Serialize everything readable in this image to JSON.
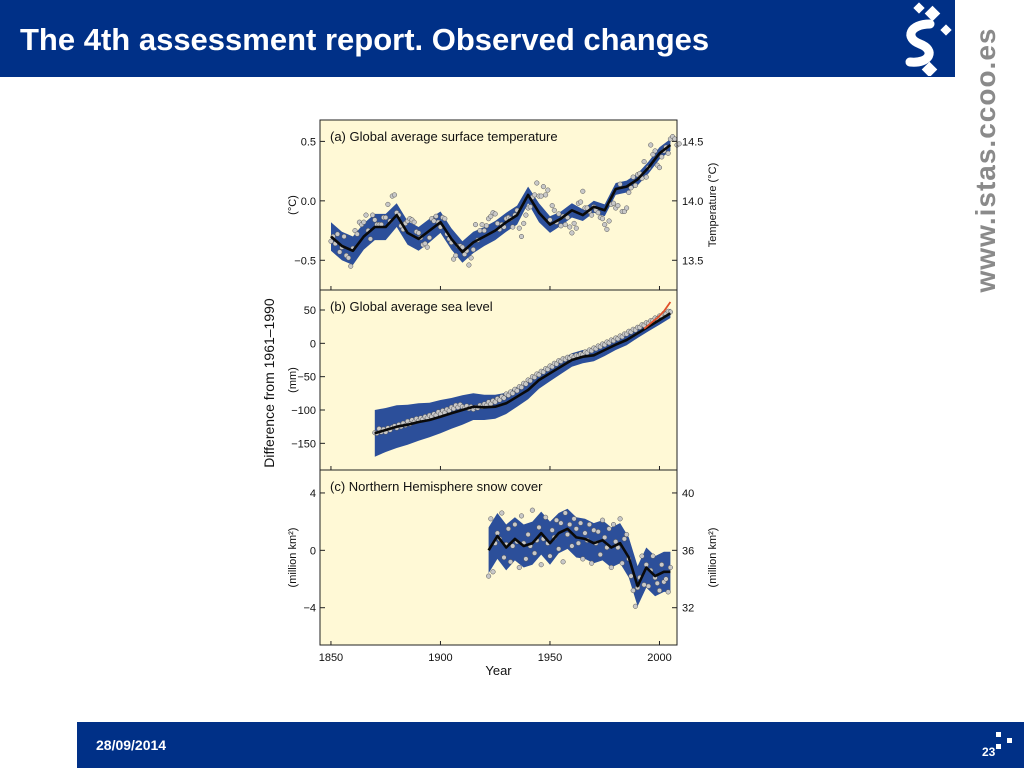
{
  "slide": {
    "title": "The 4th assessment report. Observed changes",
    "date": "28/09/2014",
    "page_number": "23",
    "website": "www.istas.ccoo.es"
  },
  "colors": {
    "header": "#003087",
    "plot_background": "#fff9d6",
    "uncertainty_band": "#2c4f9a",
    "smoothed_line": "#0a0a0a",
    "dot_fill": "#c8c8c8",
    "satellite_line": "#e0502a"
  },
  "chart_data": {
    "type": "line",
    "xlabel": "Year",
    "shared_ylabel": "Difference from 1961–1990",
    "xlim": [
      1845,
      2008
    ],
    "x_ticks": [
      1850,
      1900,
      1950,
      2000
    ],
    "panels": [
      {
        "id": "temperature",
        "title": "(a) Global average surface temperature",
        "ylabel": "(°C)",
        "y2label": "Temperature (°C)",
        "ylim": [
          -0.75,
          0.68
        ],
        "y_ticks": [
          0.5,
          0.0,
          -0.5
        ],
        "y_tick_labels": [
          "0.5",
          "0.0",
          "−0.5"
        ],
        "y2_ticks": [
          0.5,
          0.0,
          -0.5
        ],
        "y2_tick_labels": [
          "14.5",
          "14.0",
          "13.5"
        ],
        "smoothed": {
          "x": [
            1850,
            1855,
            1860,
            1865,
            1870,
            1875,
            1880,
            1885,
            1890,
            1895,
            1900,
            1905,
            1910,
            1915,
            1920,
            1925,
            1930,
            1935,
            1940,
            1945,
            1950,
            1955,
            1960,
            1965,
            1970,
            1975,
            1980,
            1985,
            1990,
            1995,
            2000,
            2005
          ],
          "y": [
            -0.3,
            -0.38,
            -0.42,
            -0.3,
            -0.22,
            -0.22,
            -0.12,
            -0.27,
            -0.32,
            -0.25,
            -0.18,
            -0.32,
            -0.43,
            -0.35,
            -0.3,
            -0.25,
            -0.18,
            -0.12,
            0.05,
            -0.1,
            -0.2,
            -0.15,
            -0.08,
            -0.12,
            -0.05,
            -0.08,
            0.1,
            0.12,
            0.18,
            0.28,
            0.4,
            0.47
          ]
        },
        "uncertainty": [
          0.12,
          0.12,
          0.12,
          0.11,
          0.11,
          0.11,
          0.1,
          0.1,
          0.1,
          0.1,
          0.09,
          0.09,
          0.09,
          0.09,
          0.08,
          0.08,
          0.08,
          0.08,
          0.07,
          0.08,
          0.07,
          0.06,
          0.06,
          0.05,
          0.05,
          0.05,
          0.05,
          0.05,
          0.05,
          0.05,
          0.05,
          0.05
        ],
        "annual_start": 1850,
        "annual": [
          -0.34,
          -0.3,
          -0.36,
          -0.28,
          -0.43,
          -0.39,
          -0.3,
          -0.46,
          -0.48,
          -0.55,
          -0.4,
          -0.25,
          -0.28,
          -0.18,
          -0.2,
          -0.18,
          -0.12,
          -0.25,
          -0.32,
          -0.12,
          -0.16,
          -0.2,
          -0.2,
          -0.2,
          -0.14,
          -0.14,
          -0.03,
          -0.17,
          0.04,
          0.05,
          -0.1,
          -0.12,
          -0.21,
          -0.24,
          -0.19,
          -0.17,
          -0.15,
          -0.16,
          -0.18,
          -0.26,
          -0.27,
          -0.31,
          -0.37,
          -0.36,
          -0.39,
          -0.31,
          -0.15,
          -0.17,
          -0.13,
          -0.18,
          -0.22,
          -0.14,
          -0.15,
          -0.28,
          -0.32,
          -0.35,
          -0.49,
          -0.46,
          -0.38,
          -0.38,
          -0.39,
          -0.45,
          -0.42,
          -0.54,
          -0.48,
          -0.41,
          -0.2,
          -0.33,
          -0.25,
          -0.2,
          -0.25,
          -0.21,
          -0.15,
          -0.13,
          -0.1,
          -0.11,
          -0.19,
          -0.24,
          -0.2,
          -0.22,
          -0.15,
          -0.14,
          -0.15,
          -0.22,
          -0.12,
          -0.08,
          -0.23,
          -0.3,
          -0.19,
          -0.12,
          -0.06,
          -0.05,
          0.03,
          0.05,
          0.15,
          0.04,
          0.04,
          0.12,
          0.05,
          0.09,
          -0.16,
          -0.04,
          -0.08,
          -0.18,
          -0.11,
          -0.21,
          -0.13,
          -0.2,
          -0.14,
          -0.22,
          -0.27,
          -0.19,
          -0.23,
          -0.02,
          -0.01,
          0.08,
          -0.06,
          -0.06,
          -0.09,
          -0.12,
          -0.05,
          -0.08,
          -0.1,
          -0.14,
          -0.15,
          -0.2,
          -0.24,
          -0.17,
          -0.03,
          -0.02,
          -0.06,
          -0.04,
          0.14,
          -0.09,
          -0.09,
          -0.06,
          0.07,
          0.11,
          0.2,
          0.13,
          0.22,
          0.23,
          0.19,
          0.33,
          0.2,
          0.28,
          0.47,
          0.39,
          0.42,
          0.3,
          0.28,
          0.37,
          0.42,
          0.45,
          0.4,
          0.52,
          0.54,
          0.52,
          0.47,
          0.48
        ]
      },
      {
        "id": "sea_level",
        "title": "(b) Global average sea level",
        "ylabel": "(mm)",
        "ylim": [
          -190,
          80
        ],
        "y_ticks": [
          50,
          0,
          -50,
          -100,
          -150
        ],
        "y_tick_labels": [
          "50",
          "0",
          "−50",
          "−100",
          "−150"
        ],
        "smoothed": {
          "x": [
            1870,
            1875,
            1880,
            1885,
            1890,
            1895,
            1900,
            1905,
            1910,
            1915,
            1920,
            1925,
            1930,
            1935,
            1940,
            1945,
            1950,
            1955,
            1960,
            1965,
            1970,
            1975,
            1980,
            1985,
            1990,
            1995,
            2000,
            2005
          ],
          "y": [
            -135,
            -130,
            -125,
            -122,
            -118,
            -115,
            -110,
            -105,
            -100,
            -95,
            -96,
            -95,
            -90,
            -80,
            -70,
            -55,
            -45,
            -35,
            -25,
            -20,
            -18,
            -10,
            -2,
            5,
            15,
            25,
            35,
            45
          ]
        },
        "uncertainty": [
          35,
          33,
          32,
          30,
          28,
          26,
          25,
          23,
          22,
          20,
          19,
          18,
          16,
          15,
          14,
          13,
          12,
          11,
          10,
          10,
          9,
          9,
          8,
          8,
          7,
          7,
          7,
          7
        ],
        "annual_start": 1870,
        "annual": [
          -134,
          -135,
          -128,
          -133,
          -129,
          -133,
          -127,
          -130,
          -126,
          -124,
          -127,
          -122,
          -125,
          -120,
          -123,
          -117,
          -121,
          -115,
          -118,
          -113,
          -116,
          -112,
          -114,
          -110,
          -112,
          -108,
          -110,
          -106,
          -108,
          -103,
          -106,
          -101,
          -104,
          -99,
          -101,
          -96,
          -98,
          -93,
          -96,
          -92,
          -95,
          -97,
          -94,
          -98,
          -95,
          -99,
          -96,
          -97,
          -93,
          -95,
          -91,
          -93,
          -88,
          -91,
          -86,
          -88,
          -83,
          -85,
          -80,
          -82,
          -76,
          -78,
          -73,
          -75,
          -69,
          -71,
          -65,
          -66,
          -60,
          -61,
          -55,
          -56,
          -50,
          -51,
          -46,
          -47,
          -42,
          -43,
          -38,
          -39,
          -34,
          -35,
          -30,
          -31,
          -26,
          -27,
          -23,
          -24,
          -21,
          -22,
          -19,
          -21,
          -18,
          -19,
          -16,
          -17,
          -13,
          -14,
          -10,
          -11,
          -7,
          -8,
          -4,
          -5,
          -1,
          -2,
          2,
          1,
          5,
          4,
          8,
          7,
          11,
          10,
          14,
          14,
          18,
          17,
          21,
          20,
          24,
          24,
          28,
          27,
          31,
          30,
          34,
          34,
          38,
          37,
          41,
          41,
          45,
          44,
          48,
          47
        ],
        "satellite": {
          "x": [
            1993,
            1996,
            1999,
            2002,
            2005
          ],
          "y": [
            22,
            30,
            38,
            48,
            62
          ]
        }
      },
      {
        "id": "snow_cover",
        "title": "(c) Northern Hemisphere snow cover",
        "ylabel": "(million km²)",
        "y2label": "(million km²)",
        "ylim": [
          -6.6,
          5.6
        ],
        "y_ticks": [
          4,
          0,
          -4
        ],
        "y_tick_labels": [
          "4",
          "0",
          "−4"
        ],
        "y2_ticks": [
          4,
          0,
          -4
        ],
        "y2_tick_labels": [
          "40",
          "36",
          "32"
        ],
        "smoothed": {
          "x": [
            1922,
            1926,
            1930,
            1934,
            1938,
            1942,
            1946,
            1950,
            1954,
            1958,
            1962,
            1966,
            1970,
            1974,
            1978,
            1982,
            1986,
            1990,
            1994,
            1998,
            2002,
            2005
          ],
          "y": [
            0,
            1,
            0.2,
            0.8,
            0.3,
            0.5,
            1.2,
            0.5,
            1.2,
            1.5,
            0.9,
            0.8,
            0.5,
            0.7,
            0.2,
            0.5,
            -0.5,
            -2.5,
            -1.2,
            -1.8,
            -1.5,
            -1.5
          ]
        },
        "uncertainty": [
          1.6,
          1.6,
          1.6,
          1.5,
          1.5,
          1.5,
          1.5,
          1.5,
          1.4,
          1.4,
          1.4,
          1.4,
          1.4,
          1.4,
          1.4,
          1.4,
          1.4,
          1.4,
          1.4,
          1.4,
          1.4,
          1.4
        ],
        "annual_start": 1922,
        "annual": [
          -1.8,
          2.2,
          -1.5,
          0.5,
          1.2,
          0.8,
          2.6,
          -0.5,
          0.4,
          1.5,
          -0.8,
          0.3,
          1.8,
          0.6,
          -1.2,
          2.4,
          0.5,
          -0.6,
          1.1,
          0.3,
          2.8,
          -0.2,
          0.7,
          1.6,
          -1.0,
          0.8,
          2.3,
          0.5,
          -0.4,
          1.4,
          0.9,
          2.1,
          0.1,
          1.9,
          -0.8,
          2.6,
          1.1,
          1.8,
          0.3,
          2.2,
          1.5,
          0.5,
          1.9,
          -0.6,
          1.2,
          0.7,
          1.8,
          -0.9,
          1.4,
          0.5,
          1.3,
          -0.3,
          2.1,
          0.9,
          0.2,
          1.5,
          -1.2,
          1.8,
          0.6,
          0.2,
          2.2,
          -0.9,
          0.8,
          1.1,
          -0.6,
          -1.8,
          -2.8,
          -3.9,
          -2.6,
          -1.9,
          -0.4,
          -2.4,
          -1.0,
          -2.5,
          -1.4,
          -0.4,
          -1.9,
          -2.3,
          -2.8,
          -1.0,
          -2.2,
          -2.0,
          -2.9,
          -1.2
        ]
      }
    ]
  }
}
